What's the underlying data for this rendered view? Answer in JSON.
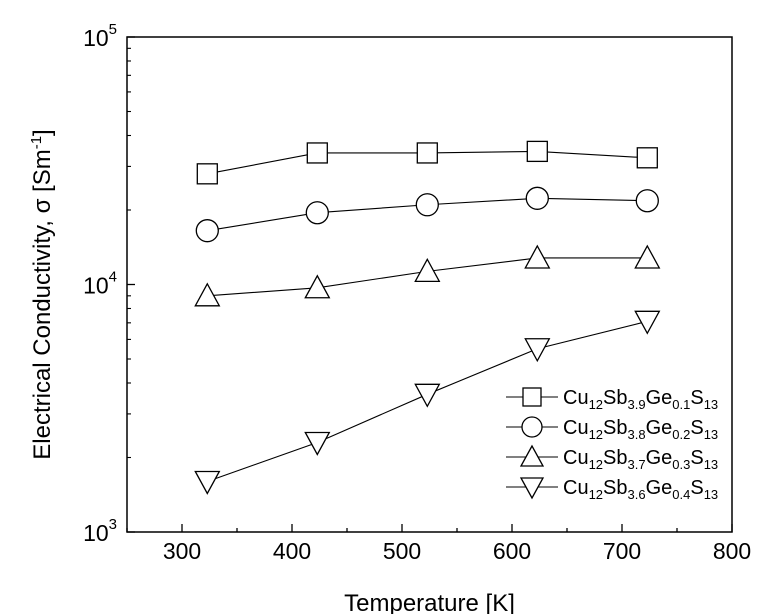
{
  "chart_data": {
    "type": "line",
    "title": "",
    "xlabel": "Temperature [K]",
    "ylabel_main": "Electrical Conductivity, σ [Sm",
    "ylabel_sup": "-1",
    "ylabel_end": "]",
    "x_scale": "linear",
    "y_scale": "log",
    "xlim": [
      250,
      800
    ],
    "ylim": [
      1000,
      100000
    ],
    "x_ticks": [
      300,
      400,
      500,
      600,
      700,
      800
    ],
    "x_tick_labels": [
      "300",
      "400",
      "500",
      "600",
      "700",
      "800"
    ],
    "y_ticks": [
      1000,
      10000,
      100000
    ],
    "y_tick_labels": [
      {
        "base": "10",
        "exp": "3"
      },
      {
        "base": "10",
        "exp": "4"
      },
      {
        "base": "10",
        "exp": "5"
      }
    ],
    "grid": false,
    "legend_position": "bottom-right",
    "series": [
      {
        "marker": "square",
        "legend": [
          {
            "t": "Cu"
          },
          {
            "t": "12",
            "sub": true
          },
          {
            "t": "Sb"
          },
          {
            "t": "3.9",
            "sub": true
          },
          {
            "t": "Ge"
          },
          {
            "t": "0.1",
            "sub": true
          },
          {
            "t": "S"
          },
          {
            "t": "13",
            "sub": true
          }
        ],
        "x": [
          323,
          423,
          523,
          623,
          723
        ],
        "y": [
          28000,
          34000,
          34000,
          34500,
          32500
        ]
      },
      {
        "marker": "circle",
        "legend": [
          {
            "t": "Cu"
          },
          {
            "t": "12",
            "sub": true
          },
          {
            "t": "Sb"
          },
          {
            "t": "3.8",
            "sub": true
          },
          {
            "t": "Ge"
          },
          {
            "t": "0.2",
            "sub": true
          },
          {
            "t": "S"
          },
          {
            "t": "13",
            "sub": true
          }
        ],
        "x": [
          323,
          423,
          523,
          623,
          723
        ],
        "y": [
          16500,
          19500,
          21000,
          22300,
          21800
        ]
      },
      {
        "marker": "triangle-up",
        "legend": [
          {
            "t": "Cu"
          },
          {
            "t": "12",
            "sub": true
          },
          {
            "t": "Sb"
          },
          {
            "t": "3.7",
            "sub": true
          },
          {
            "t": "Ge"
          },
          {
            "t": "0.3",
            "sub": true
          },
          {
            "t": "S"
          },
          {
            "t": "13",
            "sub": true
          }
        ],
        "x": [
          323,
          423,
          523,
          623,
          723
        ],
        "y": [
          9000,
          9700,
          11300,
          12800,
          12800
        ]
      },
      {
        "marker": "triangle-down",
        "legend": [
          {
            "t": "Cu"
          },
          {
            "t": "12",
            "sub": true
          },
          {
            "t": "Sb"
          },
          {
            "t": "3.6",
            "sub": true
          },
          {
            "t": "Ge"
          },
          {
            "t": "0.4",
            "sub": true
          },
          {
            "t": "S"
          },
          {
            "t": "13",
            "sub": true
          }
        ],
        "x": [
          323,
          423,
          523,
          623,
          723
        ],
        "y": [
          1600,
          2300,
          3600,
          5500,
          7100
        ]
      }
    ]
  }
}
